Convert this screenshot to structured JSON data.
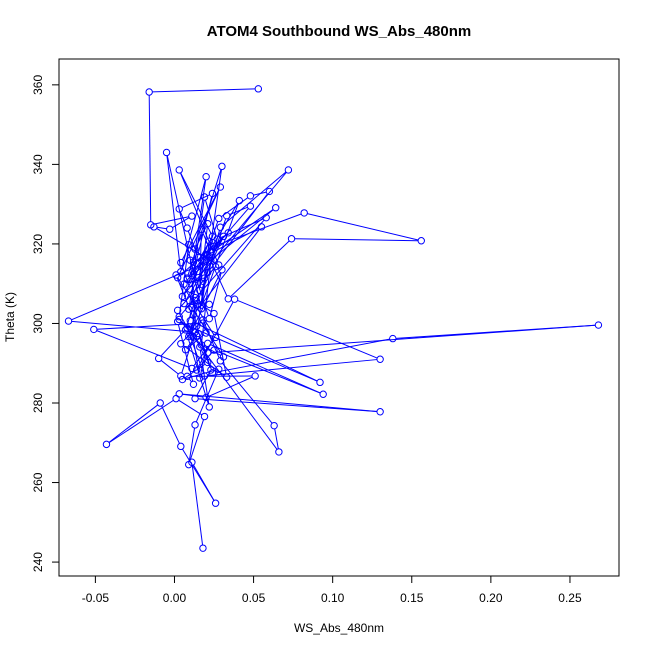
{
  "chart_data": {
    "type": "line",
    "title": "ATOM4 Southbound WS_Abs_480nm",
    "xlabel": "WS_Abs_480nm",
    "ylabel": "Theta (K)",
    "xlim": [
      -0.073,
      0.281
    ],
    "ylim": [
      236.5,
      366.5
    ],
    "xticks": [
      -0.05,
      0.0,
      0.05,
      0.1,
      0.15,
      0.2,
      0.25
    ],
    "xtick_labels": [
      "-0.05",
      "0.00",
      "0.05",
      "0.10",
      "0.15",
      "0.20",
      "0.25"
    ],
    "yticks": [
      240,
      260,
      280,
      300,
      320,
      340,
      360
    ],
    "ytick_labels": [
      "240",
      "260",
      "280",
      "300",
      "320",
      "340",
      "360"
    ],
    "grid": false,
    "series_color": "#0000ff",
    "marker": "open-circle",
    "series": [
      {
        "x": [
          0.018,
          0.011,
          0.026,
          0.004,
          -0.009,
          -0.043,
          0.001,
          0.019,
          0.009,
          0.013,
          0.028,
          0.005,
          0.021,
          0.016,
          0.022,
          0.007,
          0.013,
          0.025,
          0.033,
          0.004,
          0.018,
          0.029,
          0.063,
          0.066,
          0.012,
          0.004,
          -0.01,
          0.008,
          0.019,
          0.13,
          0.038,
          0.014,
          0.025,
          0.094,
          0.021,
          0.016,
          0.01,
          0.092,
          0.002,
          0.012,
          0.008,
          0.051,
          0.02,
          0.003,
          0.13,
          0.013,
          0.023,
          0.015,
          0.007,
          0.02,
          0.018,
          -0.051,
          0.011,
          0.026,
          0.001,
          0.014,
          0.024,
          0.138,
          0.268,
          0.021,
          0.003,
          0.013,
          -0.067,
          0.023,
          0.017,
          0.031,
          0.011,
          0.013,
          0.011,
          0.002,
          0.026,
          0.018,
          0.031,
          0.006,
          0.022,
          0.015,
          0.009,
          0.03,
          0.022,
          0.01,
          0.014,
          0.019,
          0.006,
          0.023,
          0.064,
          0.008,
          0.015,
          0.028,
          0.048,
          0.06,
          0.021,
          0.029,
          0.072,
          0.005,
          0.041,
          0.017,
          0.022,
          0.01,
          0.004,
          0.029,
          0.002,
          0.034,
          0.02,
          0.008,
          0.03,
          0.017,
          -0.005,
          0.004,
          0.02,
          0.012,
          0.055,
          0.012,
          0.033,
          0.048,
          0.023,
          0.017,
          0.016,
          0.021,
          0.013,
          0.009,
          0.003,
          0.058,
          0.027,
          0.019,
          0.012,
          0.024,
          0.003,
          0.008,
          0.015,
          0.025,
          0.082,
          0.156,
          0.074,
          0.034,
          0.021,
          0.009,
          0.014,
          0.024,
          0.003,
          0.028,
          -0.013,
          -0.003,
          0.011,
          -0.015,
          -0.016,
          0.053
        ],
        "y": [
          243.5,
          265.1,
          254.8,
          269.1,
          280.0,
          269.6,
          281.1,
          276.6,
          264.5,
          274.5,
          288.5,
          285.9,
          290.2,
          294.1,
          279.0,
          298.4,
          305.8,
          302.5,
          286.5,
          294.9,
          300.9,
          290.6,
          274.3,
          267.7,
          296.6,
          286.8,
          291.2,
          298.9,
          286.8,
          291.0,
          306.1,
          288.3,
          293.3,
          282.2,
          295.0,
          286.3,
          300.7,
          285.2,
          300.5,
          284.7,
          286.7,
          286.8,
          281.4,
          282.3,
          277.8,
          281.1,
          288.3,
          297.5,
          293.4,
          297.6,
          300.1,
          298.5,
          288.7,
          296.5,
          312.2,
          299.3,
          287.6,
          296.2,
          299.6,
          292.6,
          301.0,
          297.8,
          300.6,
          315.8,
          294.6,
          291.6,
          304.0,
          306.5,
          296.9,
          303.3,
          314.3,
          310.6,
          321.9,
          305.0,
          304.8,
          304.9,
          296.7,
          313.5,
          301.2,
          315.9,
          296.9,
          311.4,
          309.9,
          318.0,
          329.1,
          311.1,
          311.5,
          326.4,
          332.1,
          333.2,
          312.8,
          324.2,
          338.6,
          306.8,
          330.9,
          304.6,
          320.7,
          308.6,
          315.3,
          334.3,
          311.5,
          322.8,
          317.3,
          311.4,
          339.5,
          303.7,
          343.0,
          313.0,
          336.9,
          315.4,
          324.3,
          302.2,
          327.1,
          329.5,
          318.0,
          323.7,
          308.3,
          325.1,
          318.7,
          319.8,
          301.7,
          326.6,
          321.2,
          331.8,
          312.5,
          332.7,
          328.8,
          324.0,
          316.6,
          319.4,
          327.8,
          320.8,
          321.3,
          306.2,
          317.4,
          303.6,
          315.0,
          321.9,
          338.6,
          314.7,
          324.3,
          323.7,
          327.0,
          324.8,
          358.2,
          359.0
        ]
      }
    ]
  }
}
